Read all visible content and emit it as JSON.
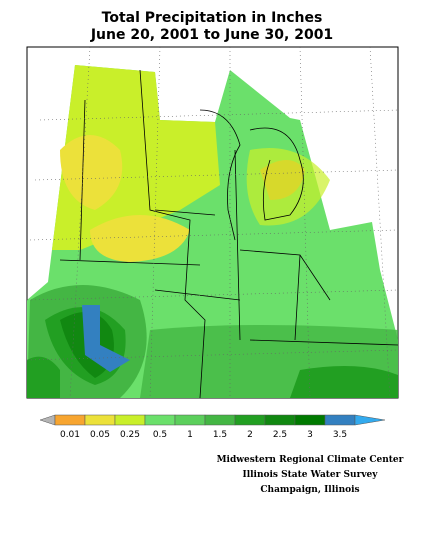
{
  "title": [
    "Total Precipitation in Inches",
    "June 20, 2001  to June 30, 2001"
  ],
  "legend": {
    "under_color": "#b4b4b4",
    "over_color": "#33aaee",
    "colors": [
      "#f7a530",
      "#ece13a",
      "#c9ef2a",
      "#6be06b",
      "#5ccf5c",
      "#44b644",
      "#229f22",
      "#118811",
      "#007a00",
      "#3380c0"
    ],
    "labels": [
      "0.01",
      "0.05",
      "0.25",
      "0.5",
      "1",
      "1.5",
      "2",
      "2.5",
      "3",
      "3.5"
    ]
  },
  "credits": [
    "Midwestern Regional Climate Center",
    "Illinois State Water Survey",
    "Champaign, Illinois"
  ]
}
